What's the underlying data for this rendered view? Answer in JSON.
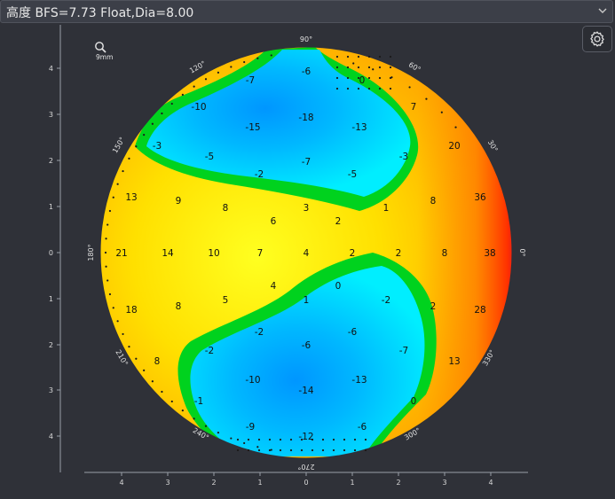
{
  "header": {
    "title": "高度 BFS=7.73 Float,Dia=8.00"
  },
  "icons": {
    "dropdown": "chevron-down-icon",
    "settings": "gear-icon",
    "zoom": "magnifier-icon"
  },
  "zoom_label": "9mm",
  "colors": {
    "background": "#2f3138",
    "blue": "#00b4ff",
    "cyan": "#00f0ff",
    "green": "#00d21e",
    "yellow": "#ffff00",
    "orange": "#ffaa00",
    "red": "#ff2a00"
  },
  "angle_labels": [
    "90°",
    "60°",
    "30°",
    "0°",
    "330°",
    "300°",
    "270°",
    "240°",
    "210°",
    "180°",
    "150°",
    "120°"
  ],
  "x_ticks": [
    "4",
    "3",
    "2",
    "1",
    "0",
    "1",
    "2",
    "3",
    "4"
  ],
  "y_ticks": [
    "4",
    "3",
    "2",
    "1",
    "0",
    "1",
    "2",
    "3",
    "4"
  ],
  "values": [
    "-6",
    "-7",
    "0",
    "-10",
    "7",
    "-18",
    "-15",
    "-13",
    "20",
    "-3",
    "-5",
    "-7",
    "-3",
    "-2",
    "-5",
    "36",
    "13",
    "9",
    "8",
    "3",
    "1",
    "8",
    "6",
    "2",
    "21",
    "14",
    "10",
    "7",
    "4",
    "2",
    "2",
    "8",
    "38",
    "4",
    "0",
    "1",
    "-2",
    "2",
    "18",
    "8",
    "5",
    "28",
    "-2",
    "-6",
    "-6",
    "-2",
    "-7",
    "8",
    "13",
    "-10",
    "-14",
    "-13",
    "-1",
    "0",
    "-9",
    "-12",
    "-6"
  ]
}
